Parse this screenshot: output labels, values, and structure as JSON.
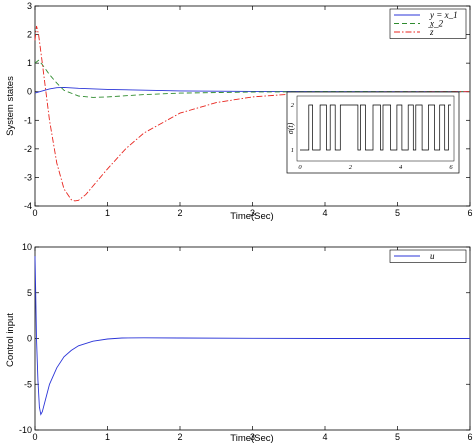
{
  "chart_data": [
    {
      "type": "line",
      "title": "",
      "xlabel": "Time(Sec)",
      "ylabel": "System states",
      "xlim": [
        0,
        6
      ],
      "ylim": [
        -4,
        3
      ],
      "xticks": [
        "0",
        "1",
        "2",
        "3",
        "4",
        "5",
        "6"
      ],
      "yticks": [
        "-4",
        "-3",
        "-2",
        "-1",
        "0",
        "1",
        "2",
        "3"
      ],
      "grid": false,
      "legend_position": "top-right",
      "series": [
        {
          "name": "y = x_1",
          "color": "#2b35d8",
          "style": "solid",
          "x": [
            0,
            0.1,
            0.2,
            0.3,
            0.4,
            0.6,
            1.0,
            2.0,
            3.0,
            4.0,
            5.0,
            6.0
          ],
          "y": [
            -0.05,
            0.03,
            0.1,
            0.14,
            0.15,
            0.12,
            0.08,
            0.03,
            0.01,
            0.0,
            0.0,
            0.0
          ]
        },
        {
          "name": "x_2",
          "color": "#2e8b2e",
          "style": "dashed",
          "x": [
            0,
            0.05,
            0.1,
            0.2,
            0.3,
            0.4,
            0.6,
            0.8,
            1.0,
            1.5,
            2.0,
            3.0,
            4.0,
            6.0
          ],
          "y": [
            1.0,
            1.1,
            0.95,
            0.6,
            0.3,
            0.05,
            -0.15,
            -0.2,
            -0.18,
            -0.1,
            -0.05,
            -0.01,
            0.0,
            0.0
          ]
        },
        {
          "name": "̅z",
          "color": "#e8261f",
          "style": "dashdot",
          "x": [
            0,
            0.02,
            0.05,
            0.1,
            0.15,
            0.2,
            0.3,
            0.4,
            0.5,
            0.55,
            0.6,
            0.7,
            0.8,
            1.0,
            1.25,
            1.5,
            2.0,
            2.5,
            3.0,
            3.5,
            4.0,
            5.0,
            6.0
          ],
          "y": [
            1.8,
            2.3,
            2.0,
            1.0,
            0.0,
            -1.0,
            -2.5,
            -3.4,
            -3.78,
            -3.82,
            -3.8,
            -3.6,
            -3.3,
            -2.7,
            -2.0,
            -1.45,
            -0.75,
            -0.38,
            -0.18,
            -0.09,
            -0.04,
            -0.01,
            0.0
          ]
        }
      ],
      "inset": {
        "type": "line",
        "ylabel": "σ(t)",
        "xlim": [
          0,
          6
        ],
        "ylim": [
          1,
          2
        ],
        "xticks": [
          "0",
          "2",
          "4",
          "6"
        ],
        "yticks": [
          "1",
          "2"
        ],
        "style": "step",
        "color": "#000000",
        "switch_times": [
          0,
          0.35,
          0.5,
          0.8,
          1.05,
          1.2,
          1.4,
          1.6,
          2.3,
          2.4,
          2.6,
          2.9,
          3.2,
          3.3,
          3.6,
          3.85,
          4.05,
          4.3,
          4.5,
          4.6,
          4.85,
          5.1,
          5.35,
          5.55,
          5.75,
          5.9,
          6.0
        ],
        "start_value": 1
      }
    },
    {
      "type": "line",
      "title": "",
      "xlabel": "Time(Sec)",
      "ylabel": "Control input",
      "xlim": [
        0,
        6
      ],
      "ylim": [
        -10,
        10
      ],
      "xticks": [
        "0",
        "1",
        "2",
        "3",
        "4",
        "5",
        "6"
      ],
      "yticks": [
        "-10",
        "-5",
        "0",
        "5",
        "10"
      ],
      "grid": false,
      "legend_position": "top-right",
      "series": [
        {
          "name": "u",
          "color": "#2b35d8",
          "style": "solid",
          "x": [
            0,
            0.01,
            0.02,
            0.04,
            0.06,
            0.08,
            0.1,
            0.15,
            0.2,
            0.3,
            0.4,
            0.5,
            0.6,
            0.8,
            1.0,
            1.2,
            1.5,
            2.0,
            3.0,
            4.0,
            5.0,
            6.0
          ],
          "y": [
            9.0,
            5.0,
            0.0,
            -4.5,
            -7.5,
            -8.3,
            -8.0,
            -6.5,
            -5.0,
            -3.2,
            -2.0,
            -1.3,
            -0.8,
            -0.3,
            -0.05,
            0.05,
            0.08,
            0.05,
            0.02,
            0.0,
            0.0,
            0.0
          ]
        }
      ]
    }
  ]
}
